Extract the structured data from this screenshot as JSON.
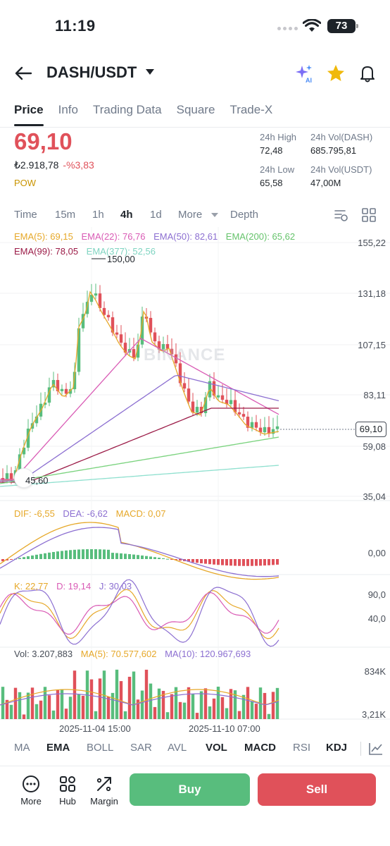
{
  "status_bar": {
    "time": "11:19",
    "battery": "73"
  },
  "header": {
    "pair": "DASH/USDT"
  },
  "tabs": [
    "Price",
    "Info",
    "Trading Data",
    "Square",
    "Trade-X"
  ],
  "price": {
    "last": "69,10",
    "fiat": "₺2.918,78",
    "change": "-%3,83",
    "tag": "POW"
  },
  "stats": {
    "high_label": "24h High",
    "high": "72,48",
    "vol_dash_label": "24h Vol(DASH)",
    "vol_dash": "685.795,81",
    "low_label": "24h Low",
    "low": "65,58",
    "vol_usdt_label": "24h Vol(USDT)",
    "vol_usdt": "47,00M"
  },
  "intervals": [
    "Time",
    "15m",
    "1h",
    "4h",
    "1d",
    "More",
    "Depth"
  ],
  "ema_legend": {
    "ema5": "EMA(5): 69,15",
    "ema22": "EMA(22): 76,76",
    "ema50": "EMA(50): 82,61",
    "ema200": "EMA(200): 65,62",
    "ema99": "EMA(99): 78,05",
    "ema377": "EMA(377): 52,56"
  },
  "price_axis": [
    "155,22",
    "131,18",
    "107,15",
    "83,11",
    "59,08",
    "35,04"
  ],
  "last_price_box": "69,10",
  "high_marker": "150,00",
  "low_marker": "45,60",
  "watermark": "BINANCE",
  "macd_legend": {
    "dif": "DIF: -6,55",
    "dea": "DEA: -6,62",
    "macd": "MACD: 0,07"
  },
  "macd_axis": [
    "0,00"
  ],
  "kdj_legend": {
    "k": "K: 22,77",
    "d": "D: 19,14",
    "j": "J: 30,03"
  },
  "kdj_axis": [
    "90,0",
    "40,0"
  ],
  "vol_legend": {
    "vol": "Vol: 3.207,883",
    "ma5": "MA(5): 70.577,602",
    "ma10": "MA(10): 120.967,693"
  },
  "vol_axis": [
    "834K",
    "3,21K"
  ],
  "x_labels": [
    "2025-11-04 15:00",
    "2025-11-10 07:00"
  ],
  "indicator_tabs": [
    "MA",
    "EMA",
    "BOLL",
    "SAR",
    "AVL",
    "VOL",
    "MACD",
    "RSI",
    "KDJ"
  ],
  "bottom": {
    "more": "More",
    "hub": "Hub",
    "margin": "Margin",
    "buy": "Buy",
    "sell": "Sell"
  },
  "colors": {
    "up": "#58bd7d",
    "down": "#e0515a",
    "ema5": "#e6a829",
    "ema22": "#d95bb5",
    "ema50": "#8c6fd1",
    "ema200": "#7bd37f",
    "ema99": "#9b1b47",
    "ema377": "#8fe0cf"
  },
  "chart_data": {
    "type": "candlestick",
    "interval": "4h",
    "y_range": [
      35.04,
      155.22
    ],
    "high": 150.0,
    "low": 45.6,
    "last": 69.1
  }
}
